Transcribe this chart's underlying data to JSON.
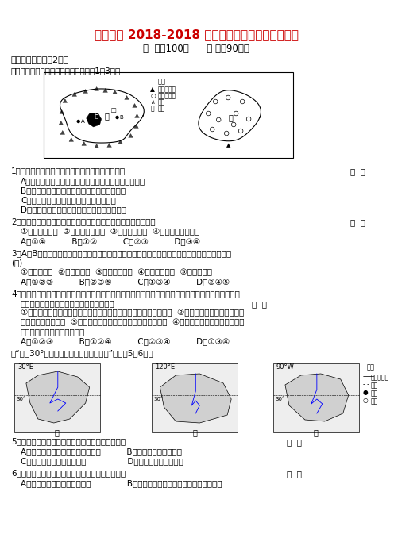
{
  "title": "桃江一中 2018-2018 学年高二第一次月考地理试题",
  "subtitle": "分  値：100分      时 量：90分钟",
  "section1": "一、选择题（每个2分）",
  "map_intro": "下图示意我国甲、乙两区域，读图回答1～3题。",
  "map2_intro": "读“北纬30°附近三个三角洲的位置示意图”，回畈5～6题。",
  "q1_main": "1．关于甲、乙两区域河流特征的描述，不正确的是",
  "q1_A": "A．甲区域以冰雪融水补给为主，乙区域以雨水补给为主",
  "q1_B": "B．甲区域以内流河为主，乙区域以外流河为主",
  "q1_C": "C．甲区域以春汛为主，乙区域以夏汛为主",
  "q1_D": "D．甲区域水系呢向心状，乙区域水系呢放射状",
  "q2_main": "2．甲、乙两区域分别盛产稻花和天然橡胶，其共同的区位优势是",
  "q2_items": "①夏季热量充足  ②劳动力价格较低  ③农业科技发达  ④农业机械化程度高",
  "q2_opts": "A．①④          B．①②          C．②③          D．③④",
  "q3_main": "3．A、B两地是我国少数民族的聚居地，也是国家重点扶贫地区，制约两地经济发展的共同因素是",
  "q3_bracket": "(　)",
  "q3_items": "①多山的地形  ②干旱的气候  ③对外联系不便  ④生产方式落后  ⑤水资源短缺",
  "q3_opts": "A．①②③          B．②③⑤          C．①③④          D．②④⑤",
  "q4_main": "4．我国经济发展出现东、中、西地带性差异是一系列自然原因、社会原因和经济原因综合作用的结果，",
  "q4_sub": "东部地带经济发展水平高、速度快的原因有",
  "q4_line1": "①主要位于东部季风区内，气候湿润、雨热同期，农业发展条件优越  ②改革开放首先从沿海起步，",
  "q4_line2": "具有区位和政策优势  ③地处亚欧大陆腾地，地域辽阔，承东启西  ④历史上形成的社会经济基础雄",
  "q4_line3": "厕，人们的思想观念比较开放",
  "q4_opts": "A．①②③          B．①②④          C．②③④          D．①③④",
  "q5_main": "5．关于图中三角洲自然地理特征的叙述，正确的是",
  "q5_A": "A．三条河流的汛期在季节上不一致          B．三地的气候特点相似",
  "q5_C": "C．三地地势低平，土壤肖沃                D．三地的植被类型相同",
  "q6_main": "6．关于以上三角洲人文地理特征的叙述，正确的是",
  "q6_A": "A．三地都有水稻种植业的分布              B．灰溉水源是三地农业发展的决定性因素",
  "bg_color": "#ffffff",
  "title_color": "#cc0000",
  "text_color": "#000000"
}
